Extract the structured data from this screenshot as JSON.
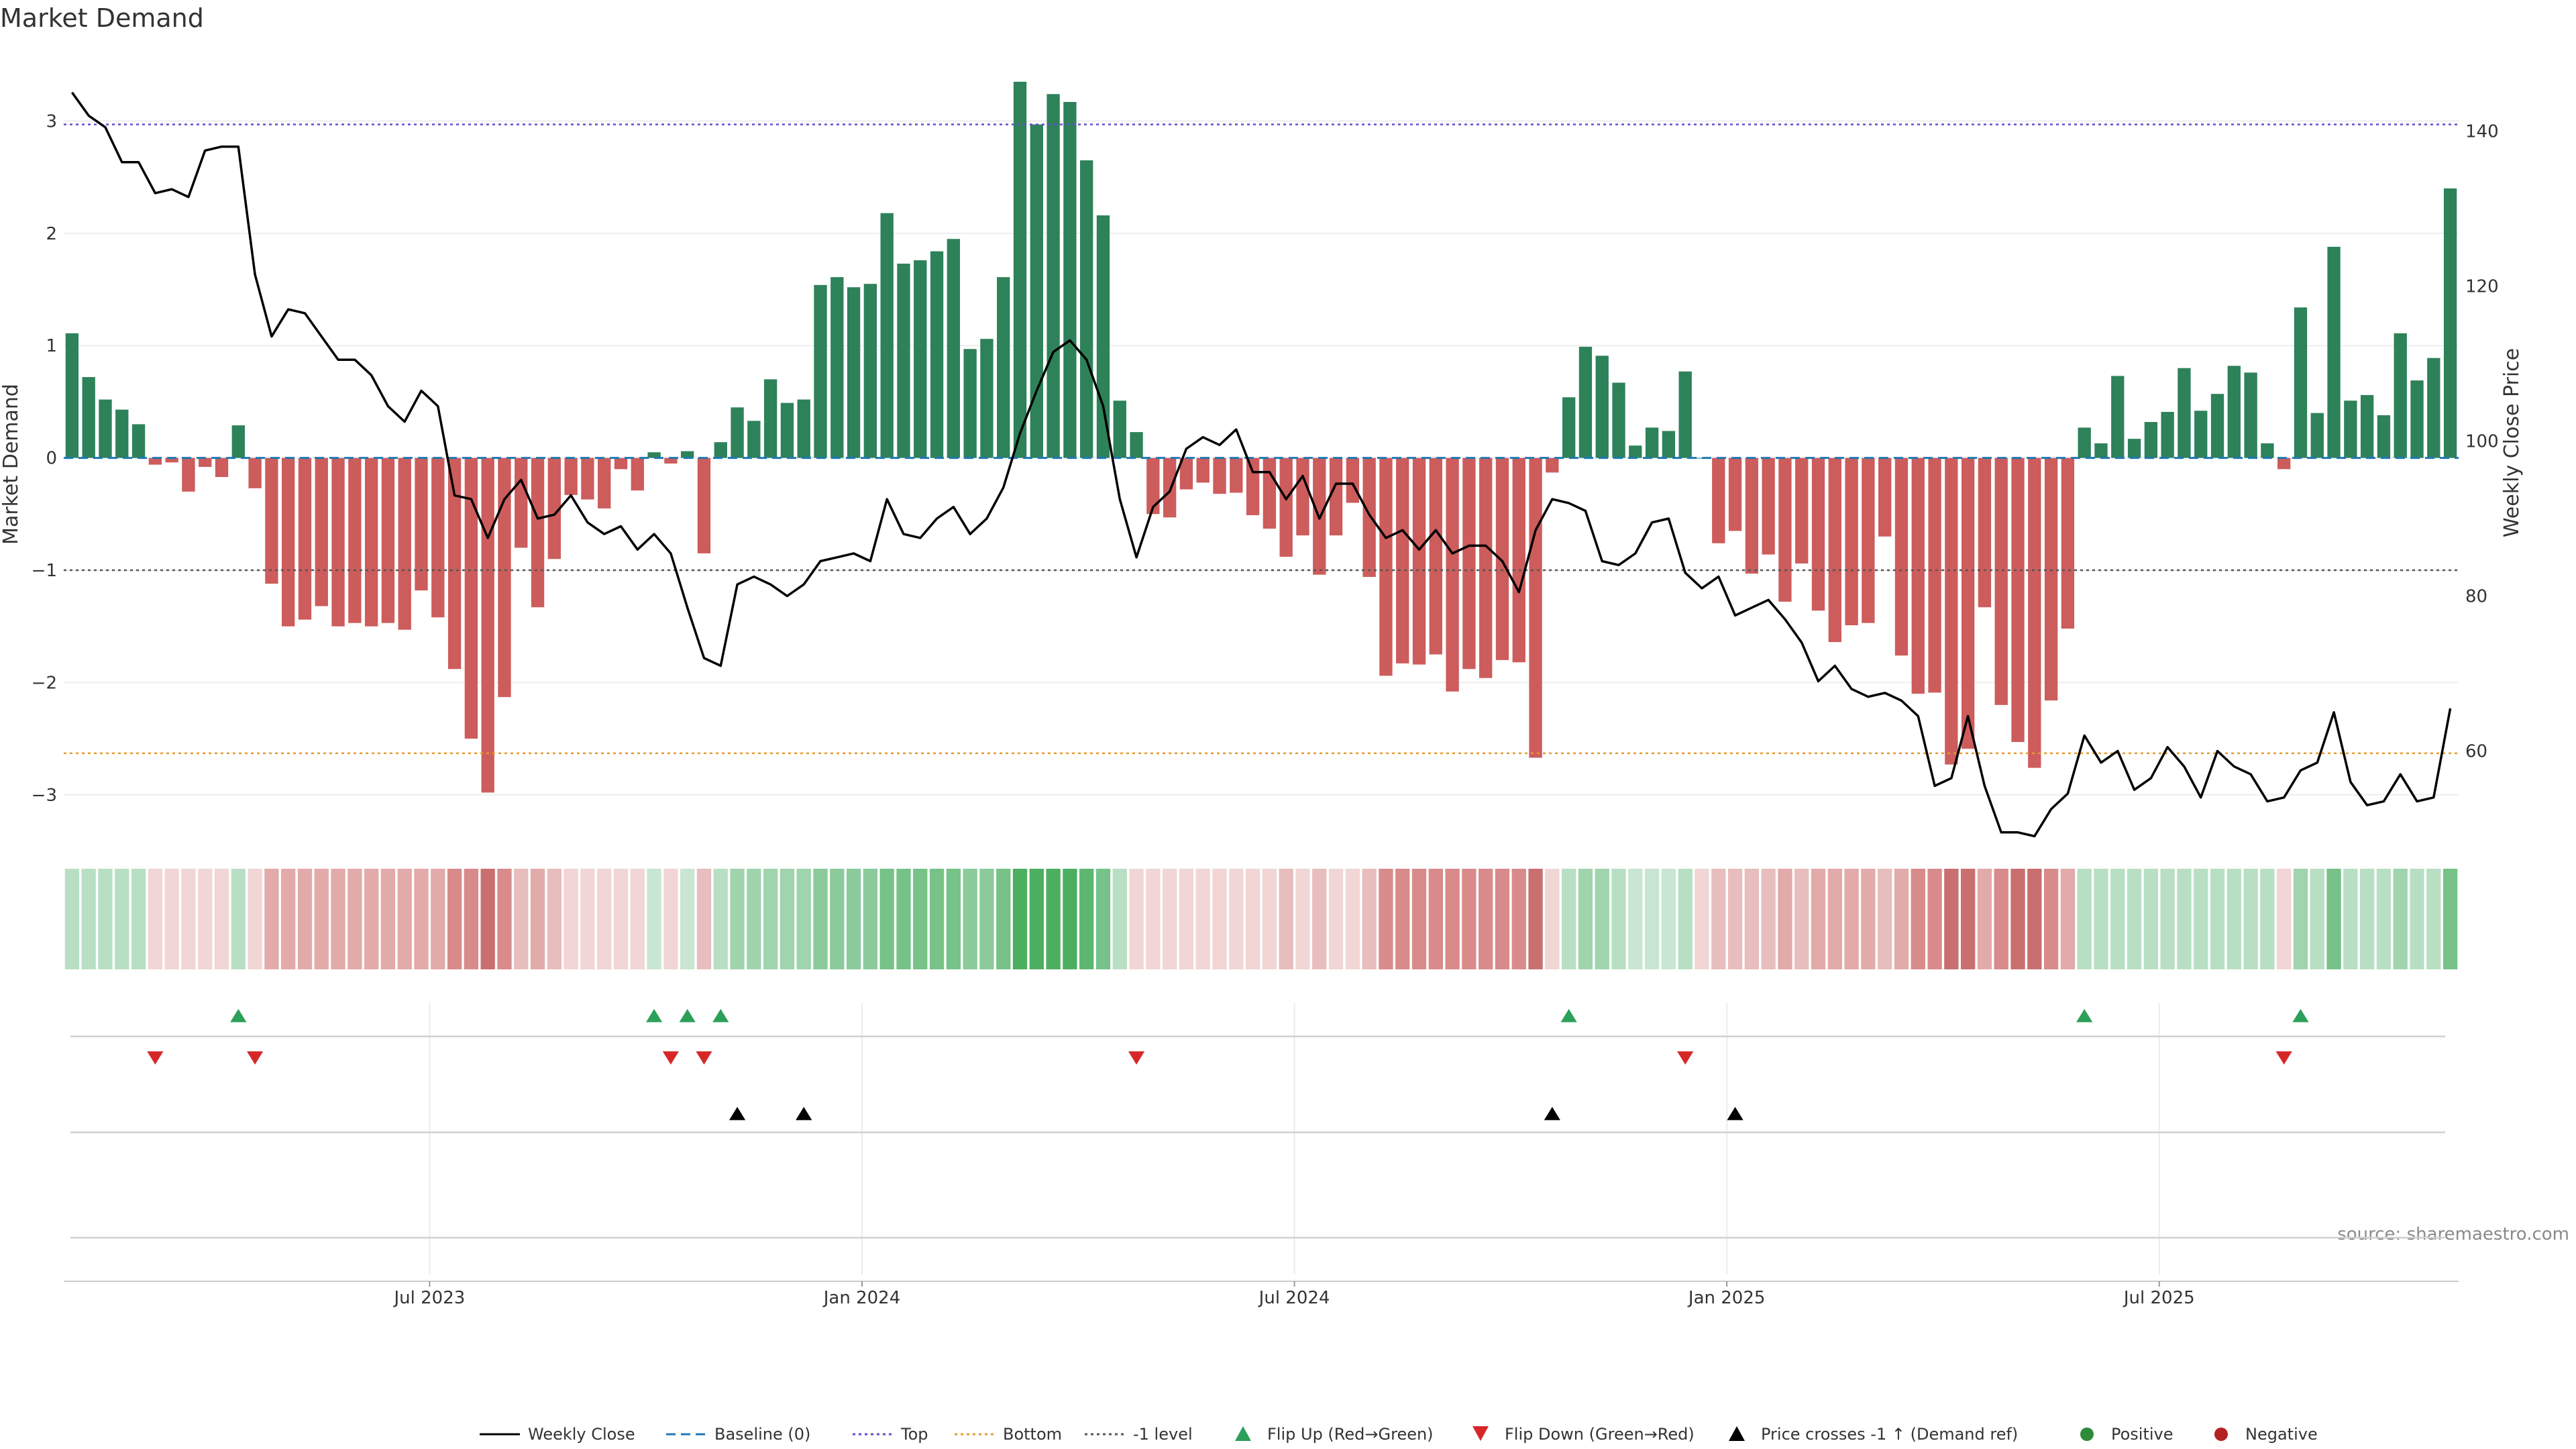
{
  "chart_data": {
    "type": "bar",
    "title": "Market Demand",
    "ylabel": "Market Demand",
    "y2label": "Weekly Close Price",
    "ylim": [
      -3.3,
      3.6
    ],
    "y2lim": [
      50,
      150
    ],
    "yticks": [
      3,
      2,
      1,
      0,
      -1,
      -2,
      -3
    ],
    "y2ticks": [
      140,
      120,
      100,
      80,
      60
    ],
    "date_ticks": [
      {
        "label": "Jul 2023",
        "week": 22
      },
      {
        "label": "Jan 2024",
        "week": 48
      },
      {
        "label": "Jul 2024",
        "week": 74
      },
      {
        "label": "Jan 2025",
        "week": 100
      },
      {
        "label": "Jul 2025",
        "week": 126
      }
    ],
    "levels": {
      "top": 2.97,
      "baseline": 0,
      "minus_one": -1,
      "bottom": -2.63
    },
    "series": [
      {
        "name": "Market Demand",
        "values": [
          1.11,
          0.72,
          0.52,
          0.43,
          0.3,
          -0.06,
          -0.04,
          -0.3,
          -0.08,
          -0.17,
          0.29,
          -0.27,
          -1.12,
          -1.5,
          -1.44,
          -1.32,
          -1.5,
          -1.47,
          -1.5,
          -1.47,
          -1.53,
          -1.18,
          -1.42,
          -1.88,
          -2.5,
          -2.98,
          -2.13,
          -0.8,
          -1.33,
          -0.9,
          -0.33,
          -0.37,
          -0.45,
          -0.1,
          -0.29,
          0.05,
          -0.05,
          0.06,
          -0.85,
          0.14,
          0.45,
          0.33,
          0.7,
          0.49,
          0.52,
          1.54,
          1.61,
          1.52,
          1.55,
          2.18,
          1.73,
          1.76,
          1.84,
          1.95,
          0.97,
          1.06,
          1.61,
          3.35,
          2.97,
          3.24,
          3.17,
          2.65,
          2.16,
          0.51,
          0.23,
          -0.5,
          -0.53,
          -0.28,
          -0.22,
          -0.32,
          -0.31,
          -0.51,
          -0.63,
          -0.88,
          -0.69,
          -1.04,
          -0.69,
          -0.4,
          -1.06,
          -1.94,
          -1.83,
          -1.84,
          -1.75,
          -2.08,
          -1.88,
          -1.96,
          -1.8,
          -1.82,
          -2.67,
          -0.13,
          0.54,
          0.99,
          0.91,
          0.67,
          0.11,
          0.27,
          0.24,
          0.77,
          0.0,
          -0.76,
          -0.65,
          -1.03,
          -0.86,
          -1.28,
          -0.94,
          -1.36,
          -1.64,
          -1.49,
          -1.47,
          -0.7,
          -1.76,
          -2.1,
          -2.09,
          -2.73,
          -2.59,
          -1.33,
          -2.2,
          -2.53,
          -2.76,
          -2.16,
          -1.52,
          0.27,
          0.13,
          0.73,
          0.17,
          0.32,
          0.41,
          0.8,
          0.42,
          0.57,
          0.82,
          0.76,
          0.13,
          -0.1,
          1.34,
          0.4,
          1.88,
          0.51,
          0.56,
          0.38,
          1.11,
          0.69,
          0.89,
          2.4
        ]
      },
      {
        "name": "Weekly Close",
        "values": [
          145.0,
          142.0,
          140.5,
          136.0,
          136.0,
          132.0,
          132.5,
          131.5,
          137.5,
          138.0,
          138.0,
          121.5,
          113.5,
          117.0,
          116.5,
          113.5,
          110.5,
          110.5,
          108.5,
          104.5,
          102.5,
          106.5,
          104.5,
          93.0,
          92.5,
          87.5,
          92.5,
          95.0,
          90.0,
          90.5,
          93.0,
          89.5,
          88.0,
          89.0,
          86.0,
          88.0,
          85.5,
          78.5,
          72.0,
          71.0,
          81.5,
          82.5,
          81.5,
          80.0,
          81.5,
          84.5,
          85.0,
          85.5,
          84.5,
          92.5,
          88.0,
          87.5,
          90.0,
          91.5,
          88.0,
          90.0,
          94.0,
          101.0,
          106.5,
          111.5,
          113.0,
          110.5,
          104.5,
          92.5,
          85.0,
          91.5,
          93.5,
          99.0,
          100.5,
          99.5,
          101.5,
          96.0,
          96.0,
          92.5,
          95.5,
          90.0,
          94.5,
          94.5,
          90.5,
          87.5,
          88.5,
          86.0,
          88.5,
          85.5,
          86.5,
          86.5,
          84.5,
          80.5,
          88.5,
          92.5,
          92.0,
          91.0,
          84.5,
          84.0,
          85.5,
          89.5,
          90.0,
          83.0,
          81.0,
          82.5,
          77.5,
          78.5,
          79.5,
          77.0,
          74.0,
          69.0,
          71.0,
          68.0,
          67.0,
          67.5,
          66.5,
          64.5,
          55.5,
          56.5,
          64.5,
          55.5,
          49.5,
          49.5,
          49.0,
          52.5,
          54.5,
          62.0,
          58.5,
          60.0,
          55.0,
          56.5,
          60.5,
          58.0,
          54.0,
          60.0,
          58.0,
          57.0,
          53.5,
          54.0,
          57.5,
          58.5,
          65.0,
          56.0,
          53.0,
          53.5,
          57.0,
          53.5,
          54.0,
          65.5
        ]
      }
    ],
    "regime_shades": [
      "#b8dfc4",
      "#b8dfc4",
      "#b8dfc4",
      "#b8dfc4",
      "#b8dfc4",
      "#f2d5d5",
      "#f2d5d5",
      "#f2d5d5",
      "#f2d5d5",
      "#f2d5d5",
      "#b8dfc4",
      "#f2d5d5",
      "#e3aaaa",
      "#e3aaaa",
      "#e3aaaa",
      "#e3aaaa",
      "#e3aaaa",
      "#e3aaaa",
      "#e3aaaa",
      "#e3aaaa",
      "#e3aaaa",
      "#e3aaaa",
      "#e3aaaa",
      "#d98b8b",
      "#d98b8b",
      "#c96f6f",
      "#d98b8b",
      "#e8bdbd",
      "#e3aaaa",
      "#e8bdbd",
      "#f2d5d5",
      "#f2d5d5",
      "#f2d5d5",
      "#f2d5d5",
      "#f2d5d5",
      "#c8e6d1",
      "#f2d5d5",
      "#c8e6d1",
      "#e8bdbd",
      "#b8dfc4",
      "#9fd4ad",
      "#9fd4ad",
      "#9fd4ad",
      "#9fd4ad",
      "#9fd4ad",
      "#8bcb9b",
      "#8bcb9b",
      "#8bcb9b",
      "#8bcb9b",
      "#76c288",
      "#76c288",
      "#76c288",
      "#76c288",
      "#76c288",
      "#8bcb9b",
      "#8bcb9b",
      "#76c288",
      "#4caf5f",
      "#4caf5f",
      "#4caf5f",
      "#4caf5f",
      "#5eb770",
      "#76c288",
      "#b8dfc4",
      "#f2d5d5",
      "#f2d5d5",
      "#f2d5d5",
      "#f2d5d5",
      "#f2d5d5",
      "#f2d5d5",
      "#f2d5d5",
      "#f2d5d5",
      "#f2d5d5",
      "#e8bdbd",
      "#f2d5d5",
      "#e8bdbd",
      "#f2d5d5",
      "#f2d5d5",
      "#e8bdbd",
      "#d98b8b",
      "#d98b8b",
      "#d98b8b",
      "#d98b8b",
      "#d98b8b",
      "#d98b8b",
      "#d98b8b",
      "#d98b8b",
      "#d98b8b",
      "#c96f6f",
      "#f2d5d5",
      "#b8dfc4",
      "#9fd4ad",
      "#9fd4ad",
      "#b8dfc4",
      "#c8e6d1",
      "#c8e6d1",
      "#c8e6d1",
      "#b8dfc4",
      "#f2d5d5",
      "#e8bdbd",
      "#e8bdbd",
      "#e8bdbd",
      "#e8bdbd",
      "#e3aaaa",
      "#e8bdbd",
      "#e3aaaa",
      "#e3aaaa",
      "#e3aaaa",
      "#e3aaaa",
      "#e8bdbd",
      "#e3aaaa",
      "#d98b8b",
      "#d98b8b",
      "#c96f6f",
      "#c96f6f",
      "#e3aaaa",
      "#d98b8b",
      "#c96f6f",
      "#c96f6f",
      "#d98b8b",
      "#e3aaaa",
      "#b8dfc4",
      "#b8dfc4",
      "#b8dfc4",
      "#b8dfc4",
      "#b8dfc4",
      "#b8dfc4",
      "#b8dfc4",
      "#b8dfc4",
      "#b8dfc4",
      "#b8dfc4",
      "#b8dfc4",
      "#b8dfc4",
      "#f2d5d5",
      "#9fd4ad",
      "#b8dfc4",
      "#76c288",
      "#b8dfc4",
      "#b8dfc4",
      "#b8dfc4",
      "#9fd4ad",
      "#b8dfc4",
      "#b8dfc4",
      "#76c288"
    ],
    "events": {
      "flip_up": [
        10,
        35,
        37,
        39,
        90,
        121,
        134
      ],
      "flip_down": [
        5,
        11,
        36,
        38,
        64,
        97,
        133
      ],
      "price_crosses": [
        40,
        44,
        89,
        100
      ]
    },
    "annotation": "source: sharemaestro.com",
    "legend": [
      {
        "label": "Weekly Close",
        "style": "line-solid",
        "color": "#000000"
      },
      {
        "label": "Baseline (0)",
        "style": "line-dashed",
        "color": "#1f77b4"
      },
      {
        "label": "Top",
        "style": "line-dotted",
        "color": "#5b4fd1"
      },
      {
        "label": "Bottom",
        "style": "line-dotted",
        "color": "#e69a2e"
      },
      {
        "label": "-1 level",
        "style": "line-dotted",
        "color": "#555555"
      },
      {
        "label": "Flip Up (Red→Green)",
        "style": "triangle-up",
        "color": "#2ca05a"
      },
      {
        "label": "Flip Down (Green→Red)",
        "style": "triangle-down",
        "color": "#d62728"
      },
      {
        "label": "Price crosses -1 ↑ (Demand ref)",
        "style": "triangle-up",
        "color": "#000000"
      },
      {
        "label": "Positive",
        "style": "circle",
        "color": "#2e8b3a"
      },
      {
        "label": "Negative",
        "style": "circle",
        "color": "#b22222"
      }
    ],
    "legend_position": "bottom-center",
    "colors": {
      "positive_bar": "#2e8259",
      "negative_bar": "#cd5c5c"
    }
  }
}
